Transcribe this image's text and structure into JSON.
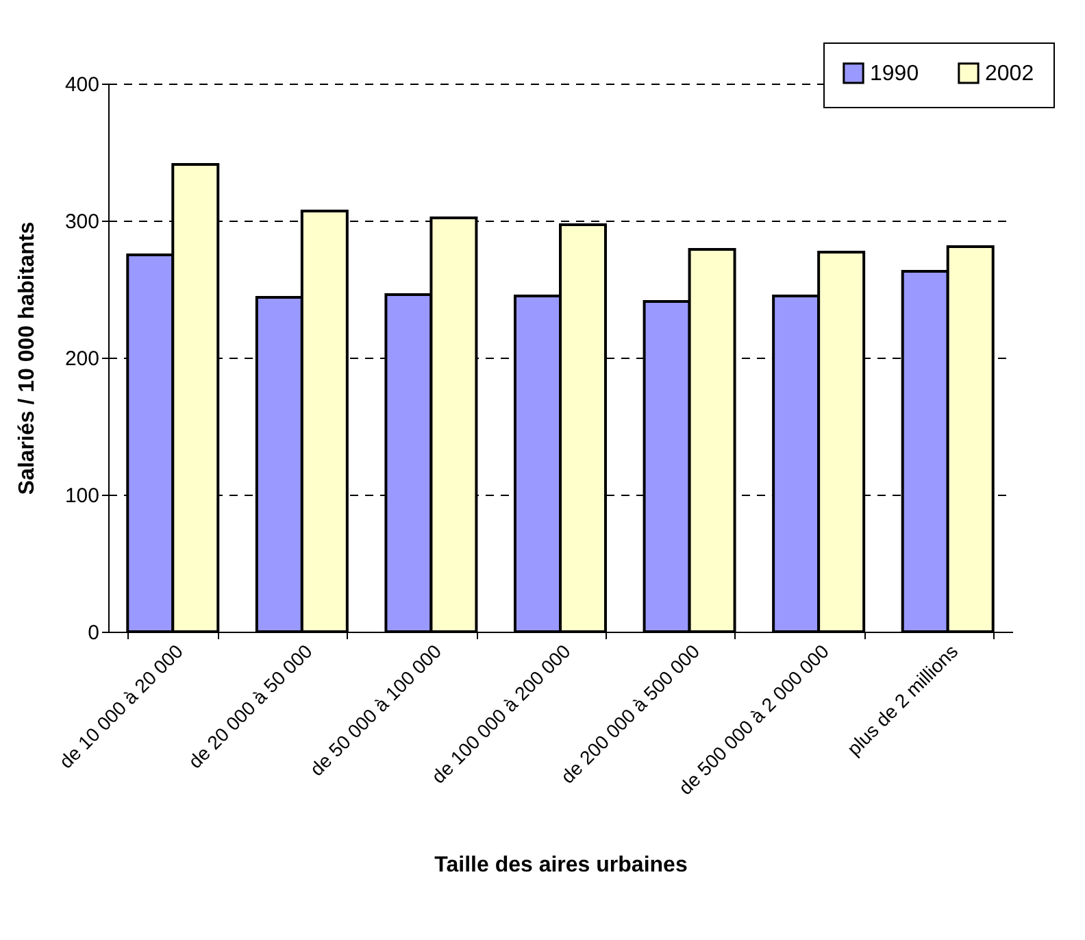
{
  "chart_data": {
    "type": "bar",
    "xlabel": "Taille des aires urbaines",
    "ylabel": "Salariés / 10 000 habitants",
    "categories": [
      "de 10 000 à 20 000",
      "de 20 000 à 50 000",
      "de 50 000 à 100 000",
      "de 100 000 à 200 000",
      "de 200 000 à 500 000",
      "de 500 000 à 2 000 000",
      "plus de 2 millions"
    ],
    "series": [
      {
        "name": "1990",
        "color": "#9999ff",
        "values": [
          275,
          244,
          246,
          245,
          241,
          245,
          263
        ]
      },
      {
        "name": "2002",
        "color": "#ffffcc",
        "values": [
          341,
          307,
          302,
          297,
          279,
          277,
          281
        ]
      }
    ],
    "ylim": [
      0,
      400
    ],
    "yticks": [
      0,
      100,
      200,
      300,
      400
    ],
    "grid": "y",
    "legend": "top right"
  }
}
